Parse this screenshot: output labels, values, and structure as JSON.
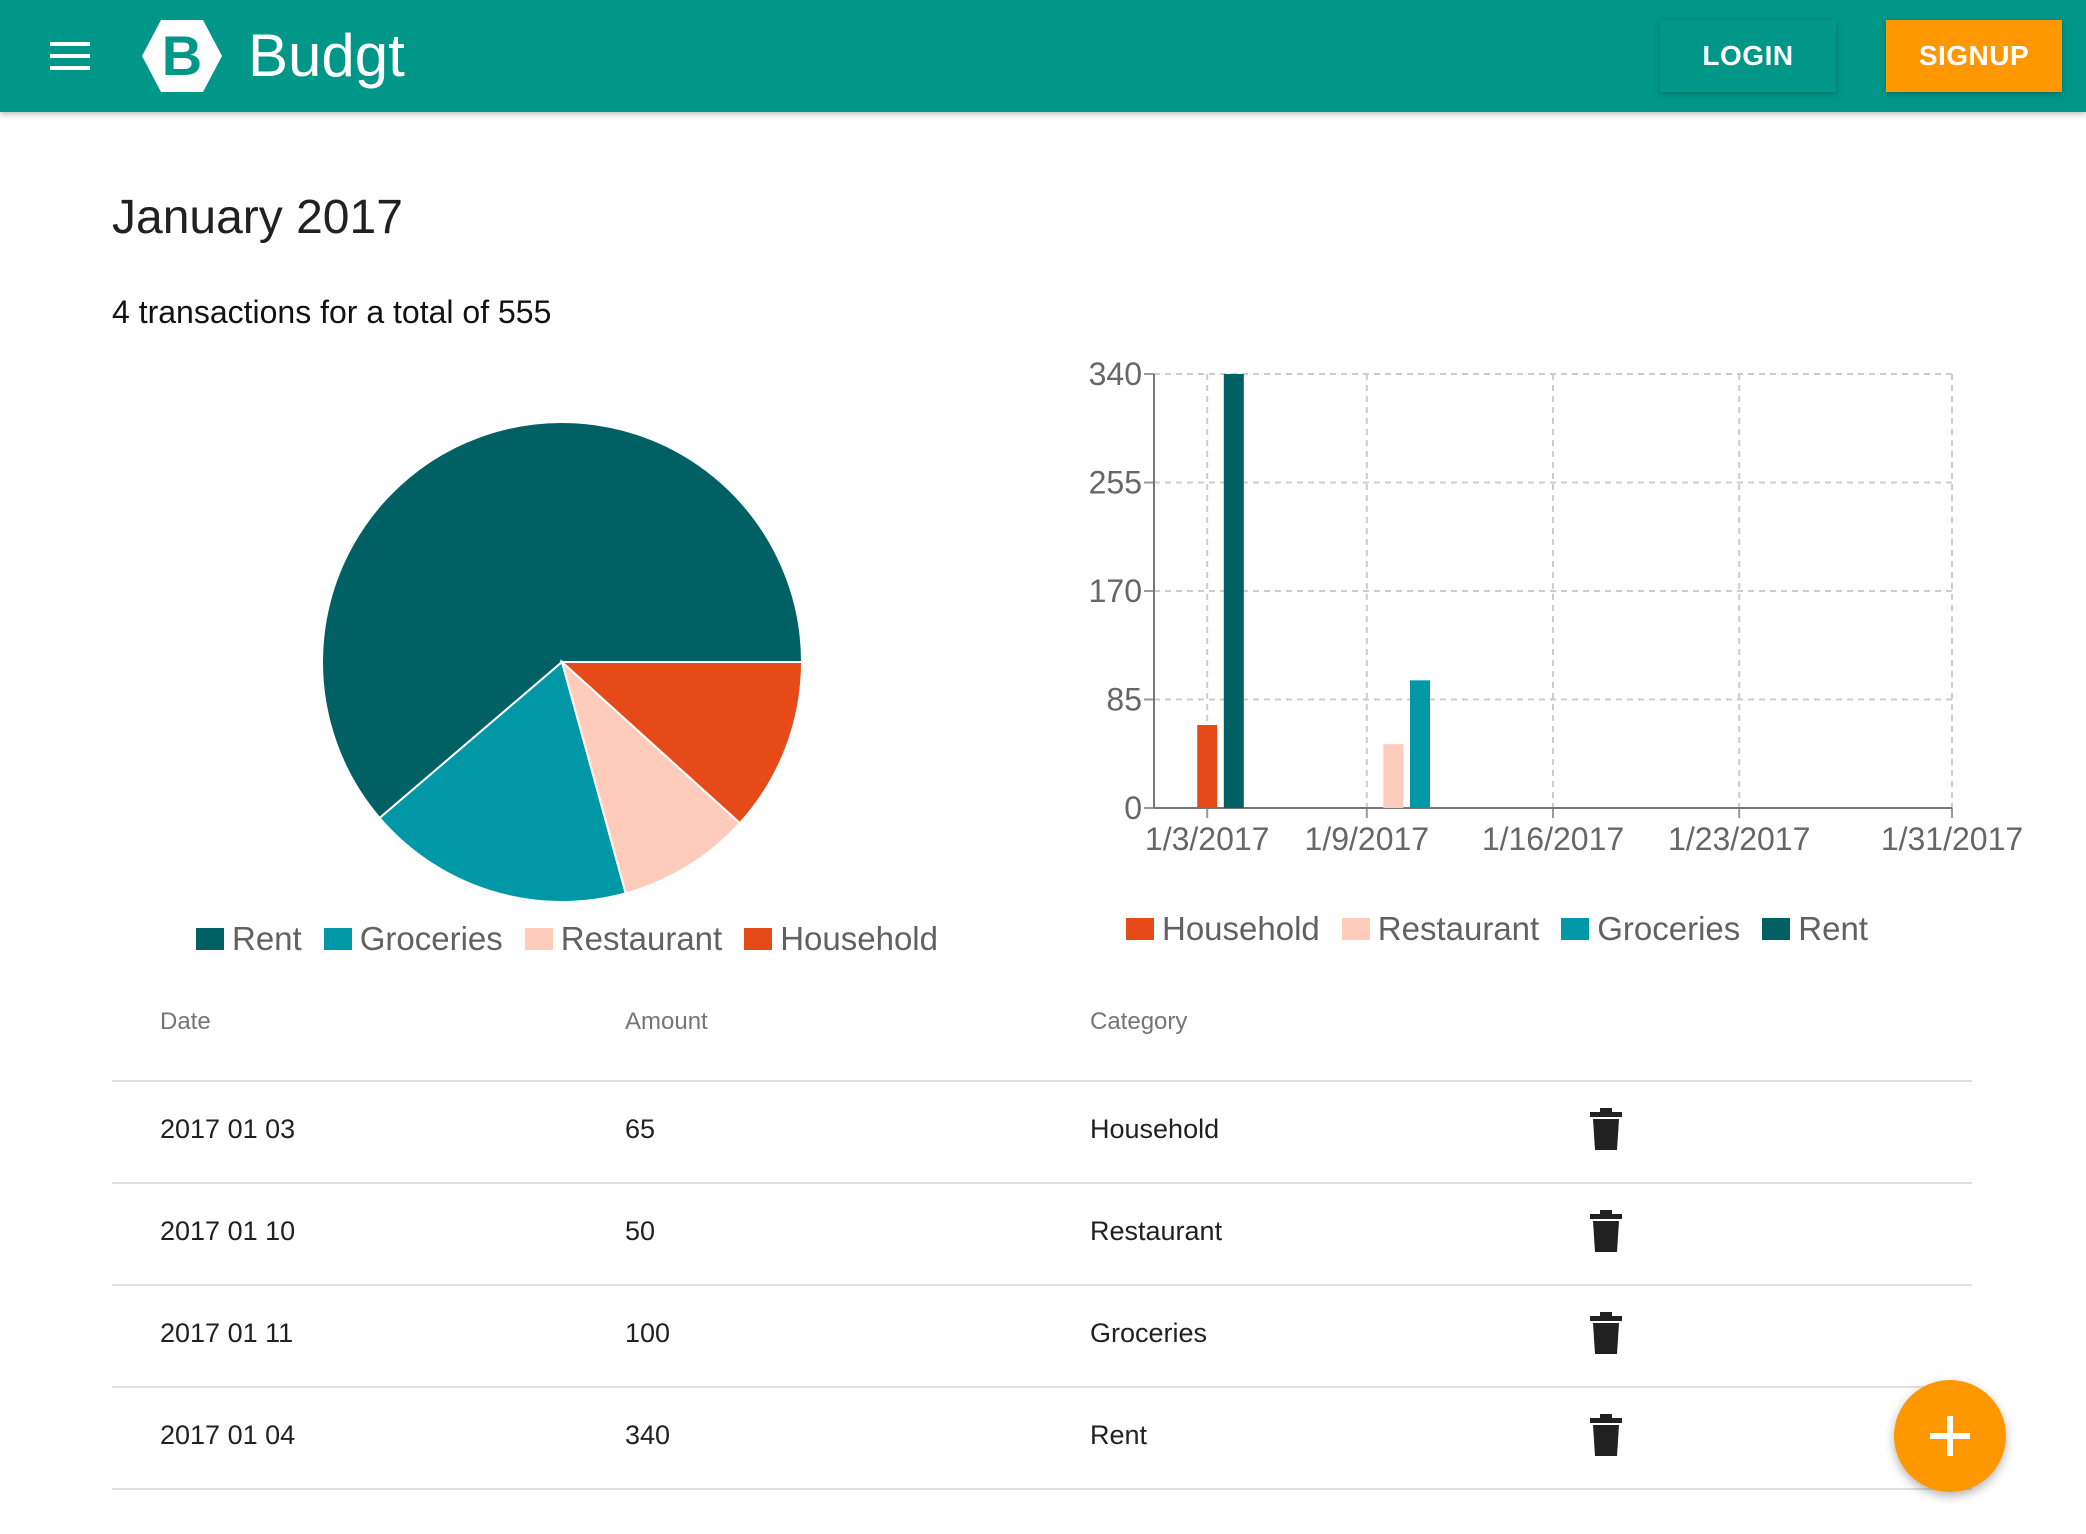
{
  "app": {
    "name": "Budgt",
    "logo_letter": "B",
    "menu_icon": "hamburger-menu-icon",
    "primary_color": "#009688",
    "accent_color": "#ff9800"
  },
  "header": {
    "login_label": "LOGIN",
    "signup_label": "SIGNUP"
  },
  "main": {
    "title": "January 2017",
    "summary": "4 transactions for a total of 555"
  },
  "colors": {
    "Rent": "#006064",
    "Groceries": "#0097a7",
    "Restaurant": "#ffccbc",
    "Household": "#e64a19"
  },
  "chart_data": [
    {
      "type": "pie",
      "categories": [
        "Rent",
        "Groceries",
        "Restaurant",
        "Household"
      ],
      "values": [
        340,
        100,
        50,
        65
      ],
      "legend": [
        "Rent",
        "Groceries",
        "Restaurant",
        "Household"
      ],
      "legend_position": "bottom"
    },
    {
      "type": "bar",
      "x_ticks": [
        "1/3/2017",
        "1/9/2017",
        "1/16/2017",
        "1/23/2017",
        "1/31/2017"
      ],
      "y_ticks": [
        "340",
        "255",
        "170",
        "85",
        "0"
      ],
      "ylim": [
        0,
        340
      ],
      "grid": true,
      "series": [
        {
          "name": "Household",
          "points": [
            {
              "date": "2017-01-03",
              "value": 65
            }
          ]
        },
        {
          "name": "Restaurant",
          "points": [
            {
              "date": "2017-01-10",
              "value": 50
            }
          ]
        },
        {
          "name": "Groceries",
          "points": [
            {
              "date": "2017-01-11",
              "value": 100
            }
          ]
        },
        {
          "name": "Rent",
          "points": [
            {
              "date": "2017-01-04",
              "value": 340
            }
          ]
        }
      ],
      "legend": [
        "Household",
        "Restaurant",
        "Groceries",
        "Rent"
      ],
      "legend_position": "bottom"
    }
  ],
  "table": {
    "headers": [
      "Date",
      "Amount",
      "Category"
    ],
    "rows": [
      {
        "date": "2017 01 03",
        "amount": "65",
        "category": "Household"
      },
      {
        "date": "2017 01 10",
        "amount": "50",
        "category": "Restaurant"
      },
      {
        "date": "2017 01 11",
        "amount": "100",
        "category": "Groceries"
      },
      {
        "date": "2017 01 04",
        "amount": "340",
        "category": "Rent"
      }
    ],
    "row_action_icon": "trash-icon"
  },
  "fab_icon": "plus-icon"
}
